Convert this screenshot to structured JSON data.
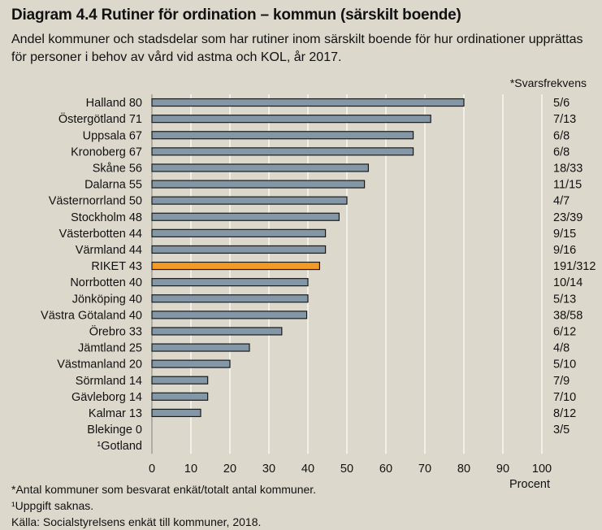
{
  "title": "Diagram 4.4 Rutiner för ordination – kommun (särskilt boende)",
  "subtitle": "Andel kommuner och stadsdelar som har rutiner inom särskilt boende för hur ordinationer upprättas för personer i behov av vård vid astma och KOL, år 2017.",
  "footnotes": [
    "*Antal kommuner som besvarat enkät/totalt antal kommuner.",
    "¹Uppgift saknas.",
    "Källa:  Socialstyrelsens enkät till kommuner, 2018."
  ],
  "chart_data": {
    "type": "bar",
    "orientation": "horizontal",
    "title": "Diagram 4.4 Rutiner för ordination – kommun (särskilt boende)",
    "xlabel": "Procent",
    "xlim": [
      0,
      100
    ],
    "xticks": [
      0,
      10,
      20,
      30,
      40,
      50,
      60,
      70,
      80,
      90,
      100
    ],
    "right_column_header": "*Svarsfrekvens",
    "grid": "vertical",
    "highlight_category": "RIKET",
    "colors": {
      "bar": "#8497a6",
      "highlight": "#f39b27",
      "bar_border": "#1a1a1a",
      "grid": "#ffffff"
    },
    "categories": [
      "Halland",
      "Östergötland",
      "Uppsala",
      "Kronoberg",
      "Skåne",
      "Dalarna",
      "Västernorrland",
      "Stockholm",
      "Västerbotten",
      "Värmland",
      "RIKET",
      "Norrbotten",
      "Jönköping",
      "Västra Götaland",
      "Örebro",
      "Jämtland",
      "Västmanland",
      "Sörmland",
      "Gävleborg",
      "Kalmar",
      "Blekinge",
      "¹Gotland"
    ],
    "values": [
      80,
      71.5,
      67,
      67,
      55.5,
      54.5,
      50,
      48,
      44.5,
      44.5,
      43,
      40,
      40,
      39.7,
      33.3,
      25,
      20,
      14.3,
      14.3,
      12.5,
      0,
      null
    ],
    "value_labels": [
      "80",
      "71",
      "67",
      "67",
      "56",
      "55",
      "50",
      "48",
      "44",
      "44",
      "43",
      "40",
      "40",
      "40",
      "33",
      "25",
      "20",
      "14",
      "14",
      "13",
      "0",
      ""
    ],
    "response_rates": [
      "5/6",
      "7/13",
      "6/8",
      "6/8",
      "18/33",
      "11/15",
      "4/7",
      "23/39",
      "9/15",
      "9/16",
      "191/312",
      "10/14",
      "5/13",
      "38/58",
      "6/12",
      "4/8",
      "5/10",
      "7/9",
      "7/10",
      "8/12",
      "3/5",
      ""
    ]
  }
}
